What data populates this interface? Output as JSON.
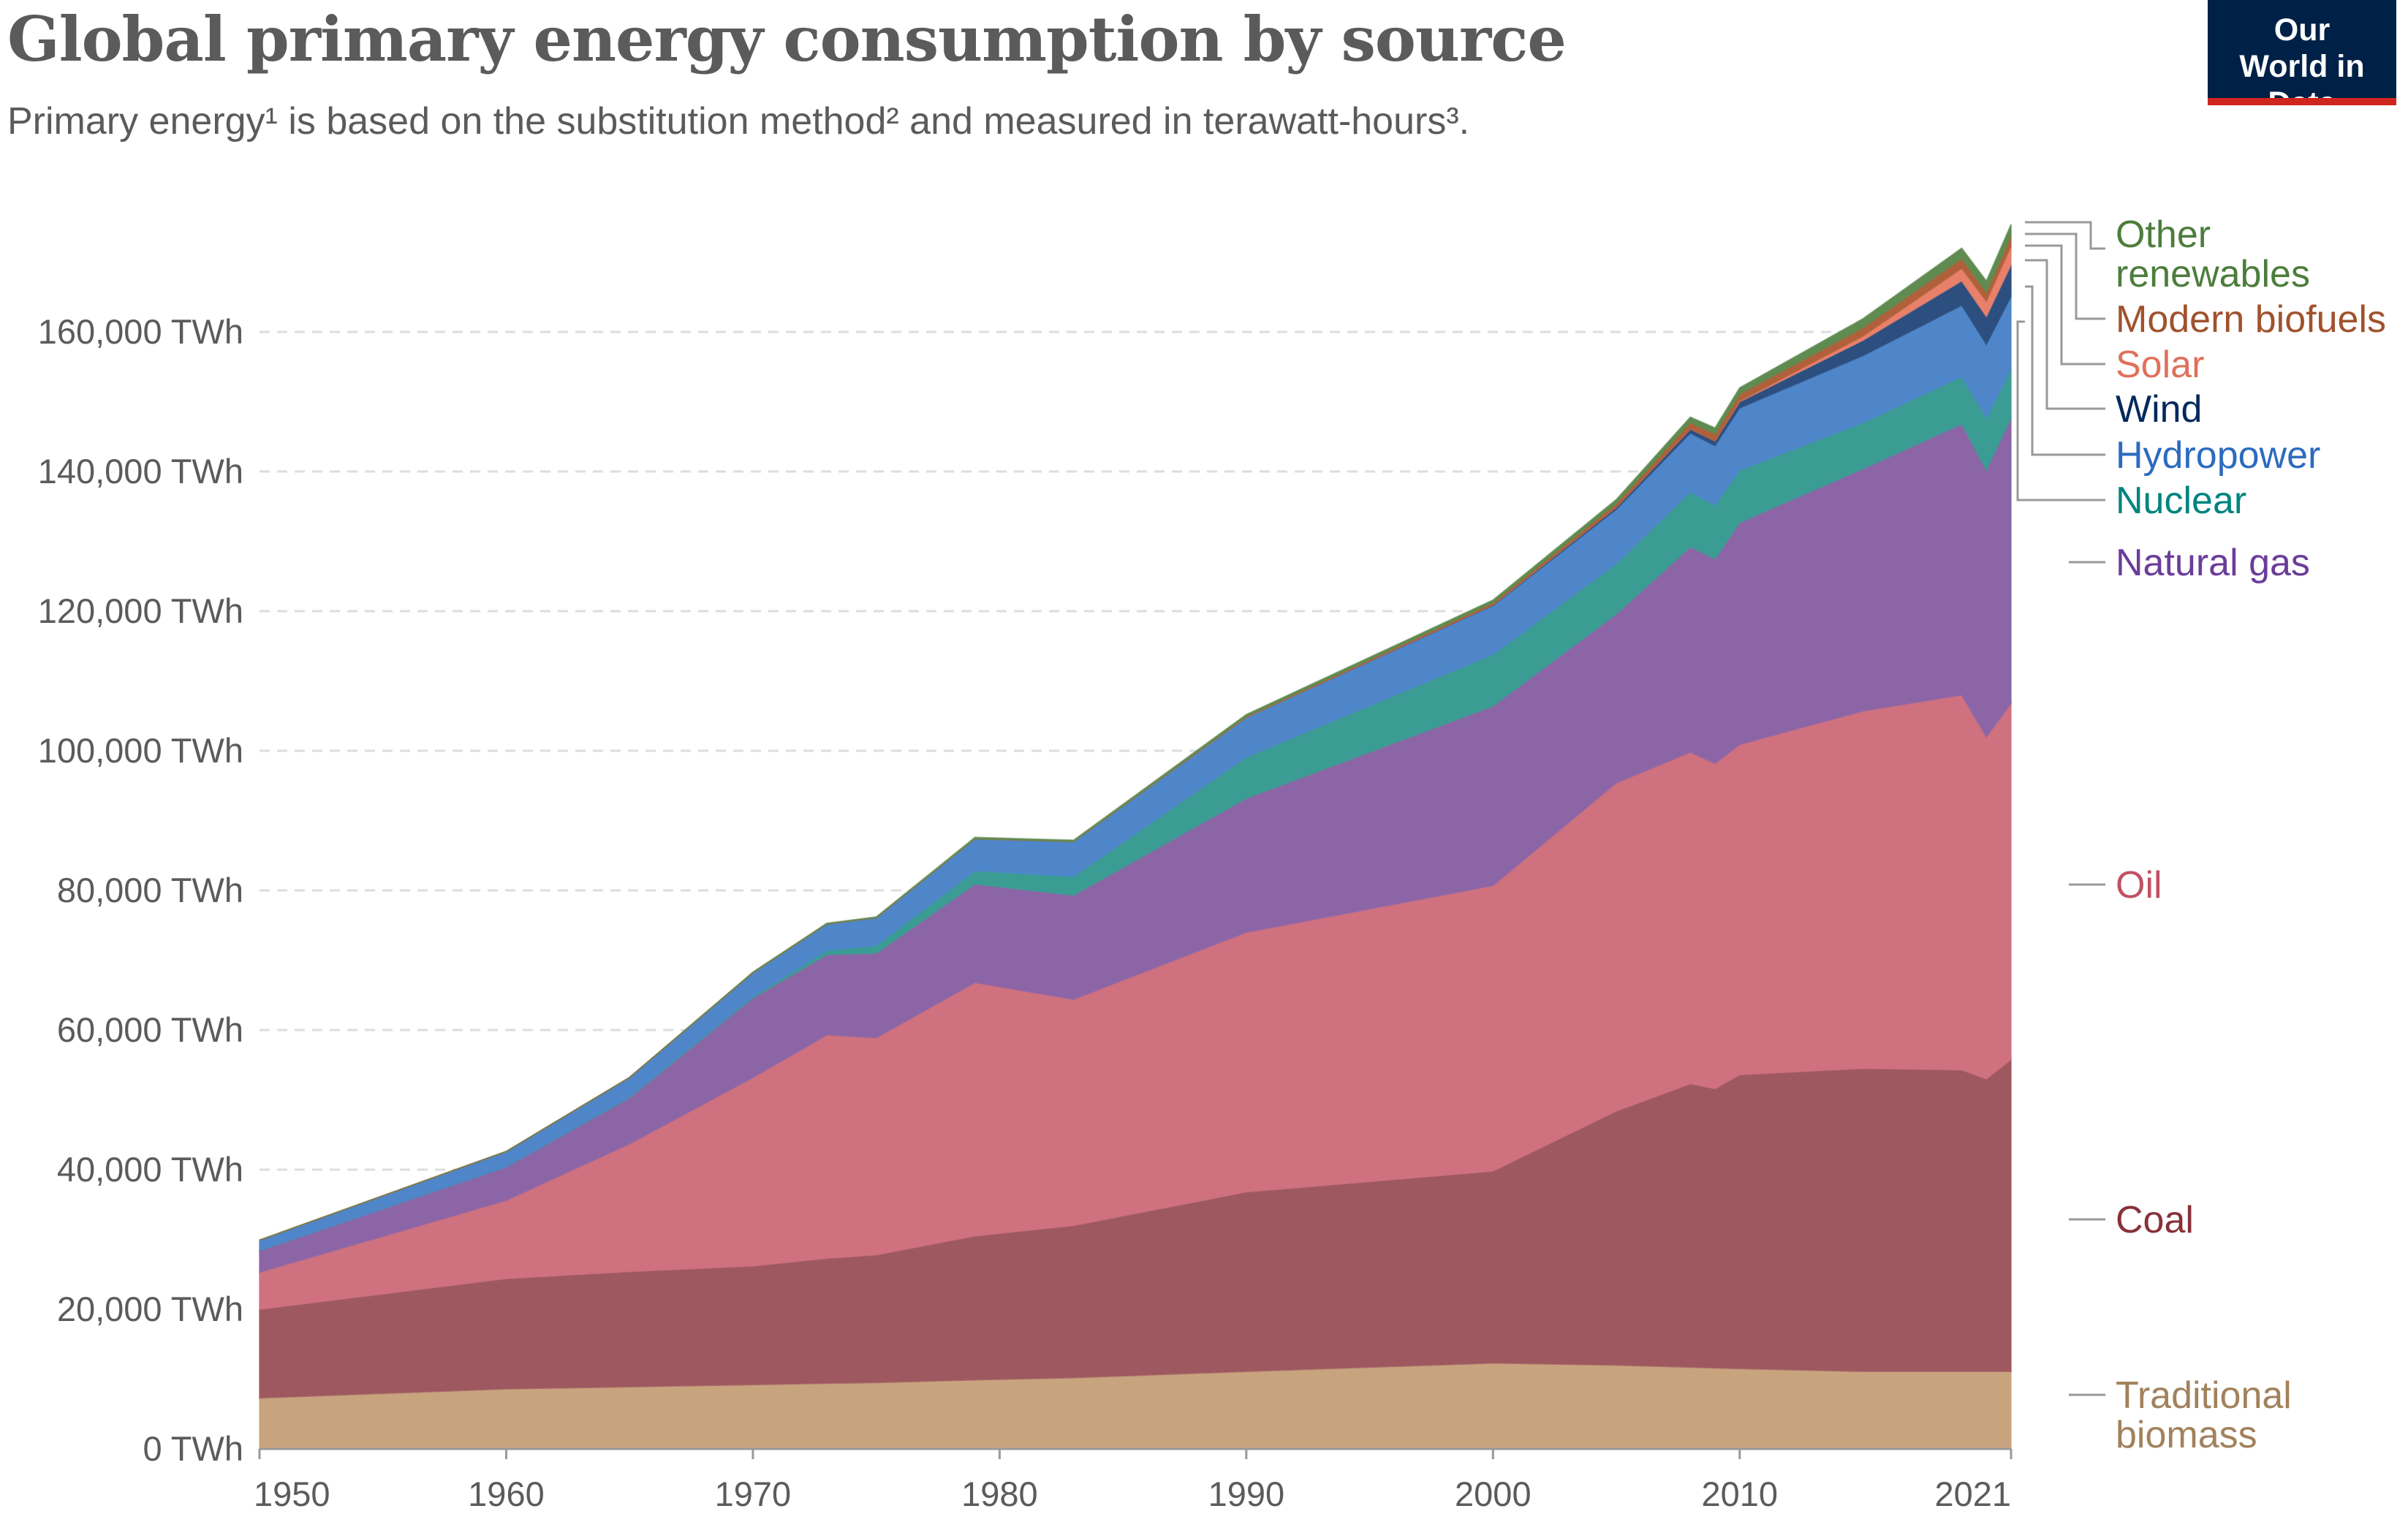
{
  "header": {
    "title": "Global primary energy consumption by source",
    "subtitle": "Primary energy¹ is based on the substitution method² and measured in terawatt-hours³.",
    "logo_text": "Our World in Data"
  },
  "chart_data": {
    "type": "area",
    "stacked": true,
    "title": "Global primary energy consumption by source",
    "xlabel": "",
    "ylabel": "",
    "xlim": [
      1950,
      2021
    ],
    "ylim": [
      0,
      180000
    ],
    "grid": "horizontal dashed",
    "legend": "right (inline labels)",
    "y_ticks": [
      "0 TWh",
      "20,000 TWh",
      "40,000 TWh",
      "60,000 TWh",
      "80,000 TWh",
      "100,000 TWh",
      "120,000 TWh",
      "140,000 TWh",
      "160,000 TWh"
    ],
    "y_tick_values": [
      0,
      20000,
      40000,
      60000,
      80000,
      100000,
      120000,
      140000,
      160000
    ],
    "x_ticks": [
      "1950",
      "1960",
      "1970",
      "1980",
      "1990",
      "2000",
      "2010",
      "2021"
    ],
    "x_tick_values": [
      1950,
      1960,
      1970,
      1980,
      1990,
      2000,
      2010,
      2021
    ],
    "x": [
      1950,
      1960,
      1965,
      1970,
      1973,
      1975,
      1979,
      1983,
      1990,
      2000,
      2005,
      2008,
      2009,
      2010,
      2015,
      2019,
      2020,
      2021
    ],
    "series": [
      {
        "name": "Traditional biomass",
        "color": "#c8a47e",
        "label_color": "#a2815b",
        "values": [
          7300,
          8600,
          8900,
          9200,
          9400,
          9500,
          9900,
          10200,
          11100,
          12300,
          12000,
          11700,
          11600,
          11500,
          11100,
          11100,
          11100,
          11100
        ]
      },
      {
        "name": "Coal",
        "color": "#9e5860",
        "label_color": "#883039",
        "values": [
          12700,
          15800,
          16500,
          17000,
          17900,
          18300,
          20600,
          21800,
          25700,
          27500,
          36400,
          40600,
          40000,
          42100,
          43400,
          43200,
          41900,
          44700
        ]
      },
      {
        "name": "Oil",
        "color": "#cf717f",
        "label_color": "#c15065",
        "values": [
          5300,
          11200,
          18300,
          27000,
          32000,
          31100,
          36300,
          32400,
          37200,
          40900,
          47000,
          47500,
          46600,
          47300,
          51200,
          53700,
          49000,
          51000
        ]
      },
      {
        "name": "Natural gas",
        "color": "#8c65a6",
        "label_color": "#6b3d9a",
        "values": [
          3100,
          4800,
          6600,
          11400,
          11500,
          12100,
          14100,
          14900,
          19200,
          25700,
          24200,
          29400,
          29300,
          31800,
          34700,
          38800,
          38200,
          40900
        ]
      },
      {
        "name": "Nuclear",
        "color": "#3b9c94",
        "label_color": "#00847e",
        "values": [
          0,
          0,
          100,
          200,
          600,
          1100,
          1900,
          2700,
          5900,
          7400,
          7200,
          7900,
          7700,
          7500,
          6600,
          6800,
          7500,
          7000
        ]
      },
      {
        "name": "Hydropower",
        "color": "#4f86c9",
        "label_color": "#2c6bbf",
        "values": [
          1500,
          2200,
          2800,
          3400,
          3800,
          4000,
          4600,
          5000,
          5700,
          7000,
          7800,
          8400,
          8500,
          8900,
          9600,
          10200,
          10500,
          10400
        ]
      },
      {
        "name": "Wind",
        "color": "#2c4f80",
        "label_color": "#00295b",
        "values": [
          0,
          0,
          0,
          0,
          0,
          0,
          0,
          0,
          0,
          100,
          300,
          600,
          700,
          900,
          2200,
          3500,
          4000,
          4500
        ]
      },
      {
        "name": "Solar",
        "color": "#e8806a",
        "label_color": "#e0705a",
        "values": [
          0,
          0,
          0,
          0,
          0,
          0,
          0,
          0,
          0,
          0,
          0,
          0,
          0,
          100,
          600,
          1800,
          2200,
          2700
        ]
      },
      {
        "name": "Modern biofuels",
        "color": "#b0603a",
        "label_color": "#a0522d",
        "values": [
          0,
          0,
          0,
          0,
          0,
          0,
          0,
          0,
          100,
          300,
          500,
          900,
          1000,
          1000,
          1200,
          1400,
          1300,
          1400
        ]
      },
      {
        "name": "Other renewables",
        "color": "#5f8b50",
        "label_color": "#4c7d3c",
        "values": [
          0,
          0,
          0,
          100,
          100,
          100,
          200,
          200,
          300,
          400,
          600,
          800,
          850,
          900,
          1300,
          1500,
          1600,
          1700
        ]
      }
    ],
    "legend_labels": [
      {
        "series": "Other renewables",
        "lines": [
          "Other",
          "renewables"
        ]
      },
      {
        "series": "Modern biofuels",
        "lines": [
          "Modern biofuels"
        ]
      },
      {
        "series": "Solar",
        "lines": [
          "Solar"
        ]
      },
      {
        "series": "Wind",
        "lines": [
          "Wind"
        ]
      },
      {
        "series": "Hydropower",
        "lines": [
          "Hydropower"
        ]
      },
      {
        "series": "Nuclear",
        "lines": [
          "Nuclear"
        ]
      },
      {
        "series": "Natural gas",
        "lines": [
          "Natural gas"
        ]
      },
      {
        "series": "Oil",
        "lines": [
          "Oil"
        ]
      },
      {
        "series": "Coal",
        "lines": [
          "Coal"
        ]
      },
      {
        "series": "Traditional biomass",
        "lines": [
          "Traditional",
          "biomass"
        ]
      }
    ]
  }
}
